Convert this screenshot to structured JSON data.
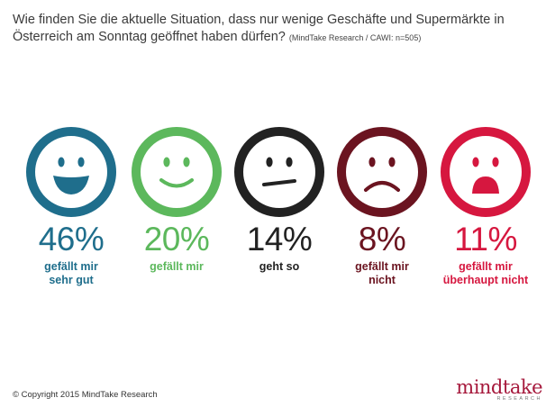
{
  "header": {
    "line1": "Wie finden Sie die aktuelle Situation, dass nur wenige Geschäfte und Supermärkte in",
    "line2": "Österreich am Sonntag geöffnet haben dürfen?",
    "source": "(MindTake Research / CAWI: n=505)"
  },
  "chart_data": {
    "type": "pictograph",
    "unit": "%",
    "categories": [
      "gefällt mir sehr gut",
      "gefällt mir",
      "geht so",
      "gefällt mir nicht",
      "gefällt mir überhaupt nicht"
    ],
    "values": [
      46,
      20,
      14,
      8,
      11
    ],
    "items": [
      {
        "pct": "46%",
        "label": [
          "gefällt mir",
          "sehr gut"
        ],
        "color": "#1f6e8c",
        "face": "big-smile-face-icon"
      },
      {
        "pct": "20%",
        "label": [
          "gefällt mir"
        ],
        "color": "#5cb85c",
        "face": "smile-face-icon"
      },
      {
        "pct": "14%",
        "label": [
          "geht so"
        ],
        "color": "#222222",
        "face": "neutral-face-icon"
      },
      {
        "pct": "8%",
        "label": [
          "gefällt mir",
          "nicht"
        ],
        "color": "#6b1420",
        "face": "frown-face-icon"
      },
      {
        "pct": "11%",
        "label": [
          "gefällt mir",
          "überhaupt nicht"
        ],
        "color": "#d6173f",
        "face": "very-sad-face-icon"
      }
    ]
  },
  "footer": {
    "copyright": "© Copyright 2015 MindTake Research",
    "logo_word": "mindtake",
    "logo_sub": "RESEARCH"
  }
}
